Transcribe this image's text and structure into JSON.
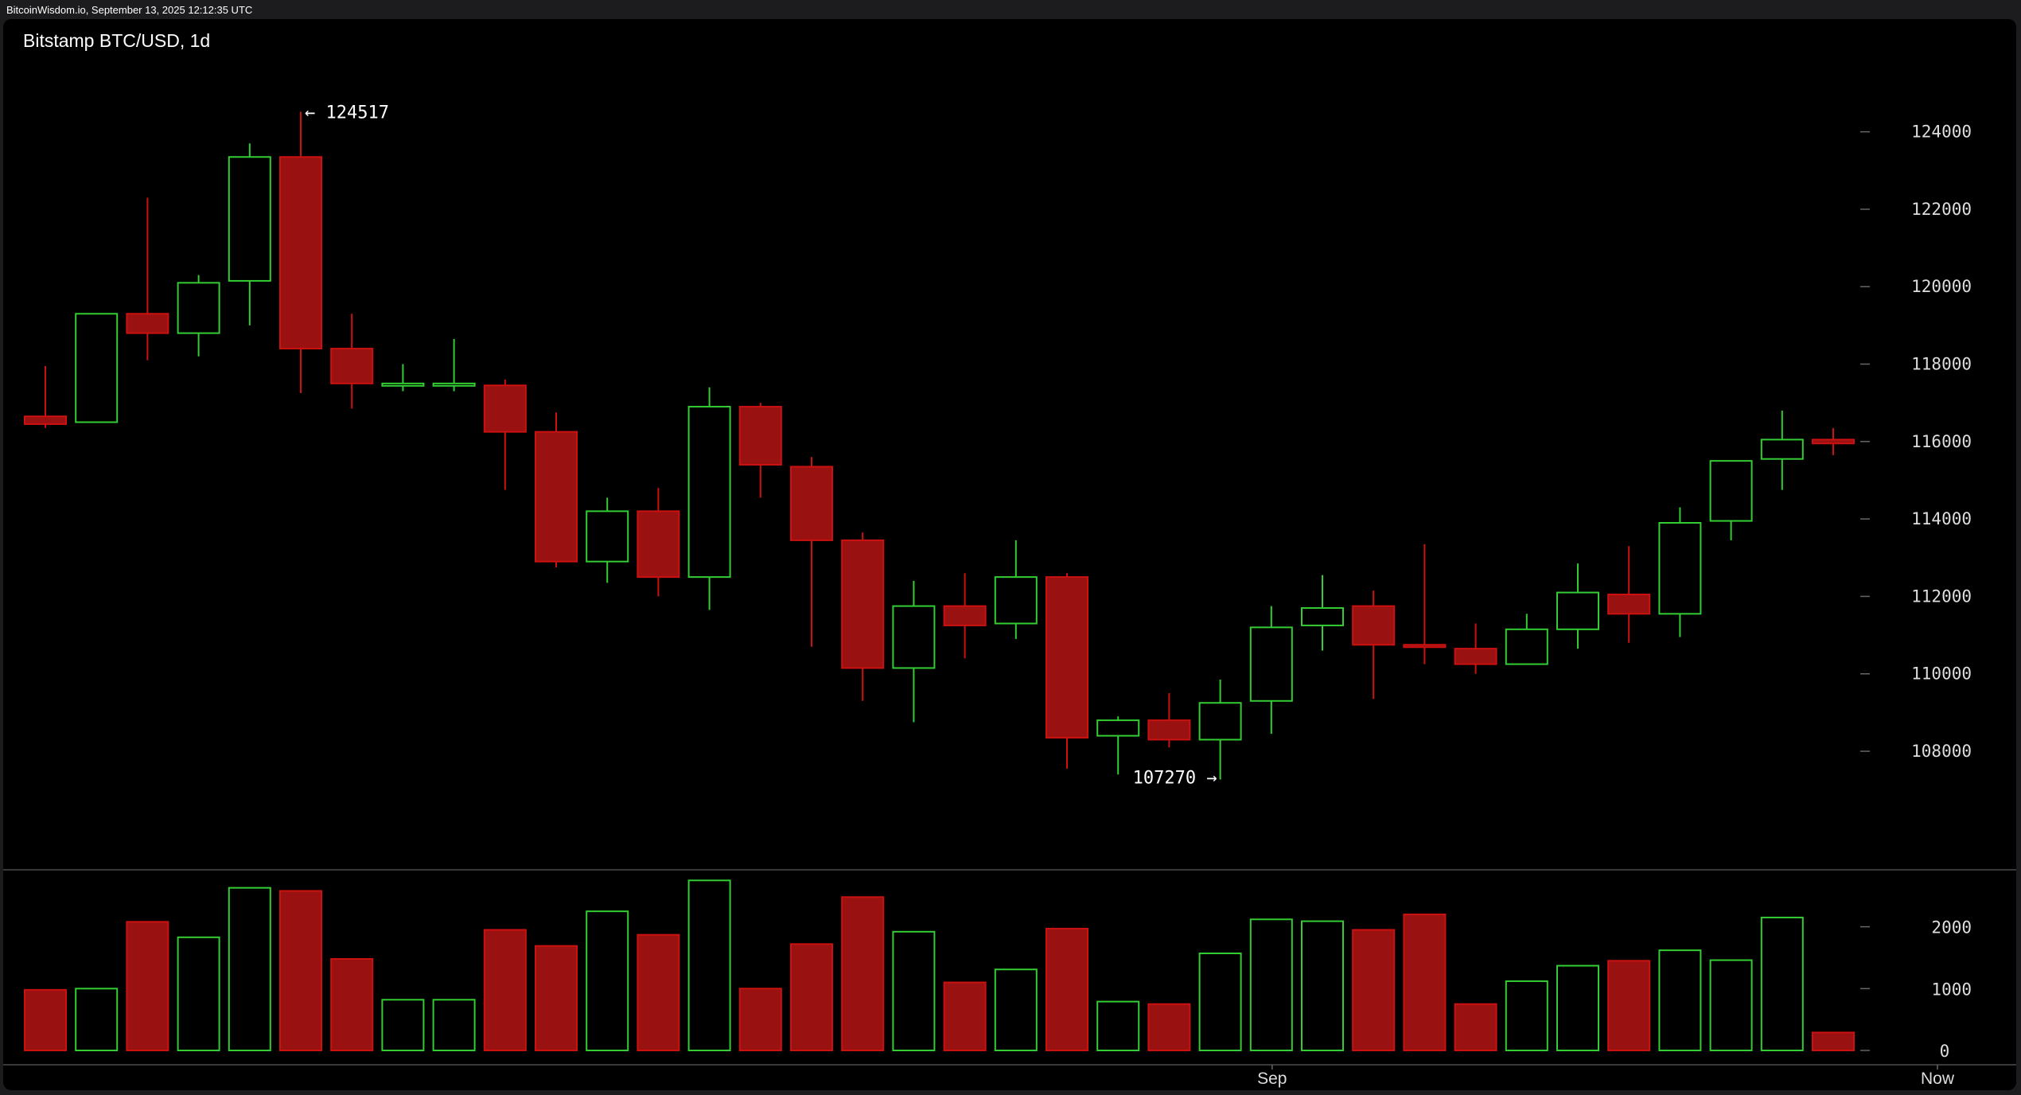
{
  "header": {
    "source": "BitcoinWisdom.io, September 13, 2025 12:12:35 UTC"
  },
  "chart_data": {
    "type": "candlestick",
    "title": "Bitstamp BTC/USD, 1d",
    "price_axis": {
      "ticks": [
        108000,
        110000,
        112000,
        114000,
        116000,
        118000,
        120000,
        122000,
        124000
      ],
      "range": [
        105000,
        126500
      ]
    },
    "volume_axis": {
      "ticks": [
        0,
        1000,
        2000
      ],
      "range": [
        0,
        3300
      ]
    },
    "x_labels": [
      {
        "label": "Sep",
        "index": 24
      },
      {
        "label": "Now",
        "index": 37
      }
    ],
    "annotations": {
      "high": {
        "label": "← 124517",
        "value": 124517,
        "index": 5
      },
      "low": {
        "label": "107270 →",
        "value": 107270,
        "index": 23
      }
    },
    "colors": {
      "up": "#33cc33",
      "down": "#cc1111",
      "down_fill": "#991111",
      "background": "#000000",
      "text": "#ffffff",
      "axis_text": "#dddddd"
    },
    "candles": [
      {
        "o": 116650,
        "h": 117950,
        "l": 116350,
        "c": 116450,
        "v": 980
      },
      {
        "o": 116500,
        "h": 119300,
        "l": 116500,
        "c": 119300,
        "v": 1000
      },
      {
        "o": 119300,
        "h": 122300,
        "l": 118100,
        "c": 118800,
        "v": 2080
      },
      {
        "o": 118800,
        "h": 120300,
        "l": 118200,
        "c": 120100,
        "v": 1830
      },
      {
        "o": 120150,
        "h": 123700,
        "l": 119000,
        "c": 123350,
        "v": 2630
      },
      {
        "o": 123350,
        "h": 124517,
        "l": 117250,
        "c": 118400,
        "v": 2580
      },
      {
        "o": 118400,
        "h": 119300,
        "l": 116850,
        "c": 117500,
        "v": 1480
      },
      {
        "o": 117500,
        "h": 118000,
        "l": 117300,
        "c": 117500,
        "v": 820
      },
      {
        "o": 117500,
        "h": 118650,
        "l": 117300,
        "c": 117500,
        "v": 820
      },
      {
        "o": 117450,
        "h": 117600,
        "l": 114750,
        "c": 116250,
        "v": 1950
      },
      {
        "o": 116250,
        "h": 116750,
        "l": 112750,
        "c": 112900,
        "v": 1690
      },
      {
        "o": 112900,
        "h": 114550,
        "l": 112350,
        "c": 114200,
        "v": 2250
      },
      {
        "o": 114200,
        "h": 114800,
        "l": 112000,
        "c": 112500,
        "v": 1870
      },
      {
        "o": 112500,
        "h": 117400,
        "l": 111650,
        "c": 116900,
        "v": 2750
      },
      {
        "o": 116900,
        "h": 117000,
        "l": 114550,
        "c": 115400,
        "v": 1000
      },
      {
        "o": 115350,
        "h": 115600,
        "l": 110700,
        "c": 113450,
        "v": 1720
      },
      {
        "o": 113450,
        "h": 113650,
        "l": 109300,
        "c": 110150,
        "v": 2480
      },
      {
        "o": 110150,
        "h": 112400,
        "l": 108750,
        "c": 111750,
        "v": 1920
      },
      {
        "o": 111750,
        "h": 112600,
        "l": 110400,
        "c": 111250,
        "v": 1100
      },
      {
        "o": 111300,
        "h": 113450,
        "l": 110900,
        "c": 112500,
        "v": 1310
      },
      {
        "o": 112500,
        "h": 112600,
        "l": 107550,
        "c": 108350,
        "v": 1970
      },
      {
        "o": 108400,
        "h": 108900,
        "l": 107400,
        "c": 108800,
        "v": 790
      },
      {
        "o": 108800,
        "h": 109500,
        "l": 108100,
        "c": 108300,
        "v": 750
      },
      {
        "o": 108300,
        "h": 109850,
        "l": 107270,
        "c": 109250,
        "v": 1570
      },
      {
        "o": 109300,
        "h": 111750,
        "l": 108450,
        "c": 111200,
        "v": 2120
      },
      {
        "o": 111250,
        "h": 112550,
        "l": 110600,
        "c": 111700,
        "v": 2090
      },
      {
        "o": 111750,
        "h": 112150,
        "l": 109350,
        "c": 110750,
        "v": 1950
      },
      {
        "o": 110750,
        "h": 113350,
        "l": 110250,
        "c": 110700,
        "v": 2200
      },
      {
        "o": 110650,
        "h": 111300,
        "l": 110000,
        "c": 110250,
        "v": 750
      },
      {
        "o": 110250,
        "h": 111550,
        "l": 110250,
        "c": 111150,
        "v": 1120
      },
      {
        "o": 111150,
        "h": 112850,
        "l": 110650,
        "c": 112100,
        "v": 1370
      },
      {
        "o": 112050,
        "h": 113300,
        "l": 110800,
        "c": 111550,
        "v": 1450
      },
      {
        "o": 111550,
        "h": 114300,
        "l": 110950,
        "c": 113900,
        "v": 1620
      },
      {
        "o": 113950,
        "h": 115500,
        "l": 113450,
        "c": 115500,
        "v": 1460
      },
      {
        "o": 115550,
        "h": 116800,
        "l": 114750,
        "c": 116050,
        "v": 2150
      },
      {
        "o": 116050,
        "h": 116350,
        "l": 115650,
        "c": 115950,
        "v": 290
      }
    ]
  }
}
